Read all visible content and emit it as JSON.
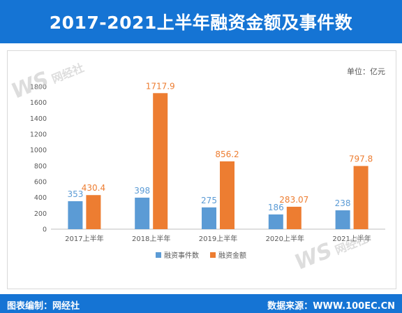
{
  "header": {
    "title": "2017-2021上半年融资金额及事件数"
  },
  "unit_label": "单位：亿元",
  "footer": {
    "left_label": "图表编制：",
    "left_value": "网经社",
    "right_label": "数据来源：",
    "right_value": "WWW.100EC.CN"
  },
  "watermark": {
    "logo": "WS",
    "name": "网经社"
  },
  "colors": {
    "accent": "#1574d4",
    "series_count": "#5b9bd5",
    "series_amount": "#ed7d31"
  },
  "chart_data": {
    "type": "bar",
    "categories": [
      "2017上半年",
      "2018上半年",
      "2019上半年",
      "2020上半年",
      "2021上半年"
    ],
    "series": [
      {
        "name": "融资事件数",
        "values": [
          353,
          398,
          275,
          186,
          238
        ],
        "labels": [
          "353",
          "398",
          "275",
          "186",
          "238"
        ],
        "color": "#5b9bd5"
      },
      {
        "name": "融资金额",
        "values": [
          430.4,
          1717.9,
          856.2,
          283.07,
          797.8
        ],
        "labels": [
          "430.4",
          "1717.9",
          "856.2",
          "283.07",
          "797.8"
        ],
        "color": "#ed7d31"
      }
    ],
    "ylim": [
      0,
      1800
    ],
    "yticks": [
      "0",
      "200",
      "400",
      "600",
      "800",
      "1000",
      "1200",
      "1400",
      "1600",
      "1800"
    ],
    "grid": false,
    "legend": "bottom"
  }
}
